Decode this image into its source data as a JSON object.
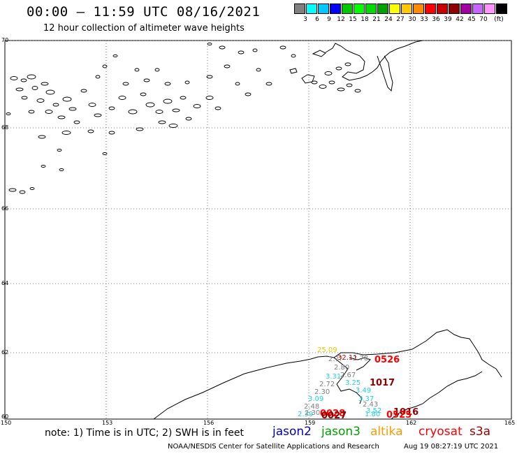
{
  "header": {
    "title": "00:00 – 11:59 UTC 08/16/2021",
    "subtitle": "12 hour collection of altimeter wave heights"
  },
  "legend": {
    "unit": "(ft)",
    "colors": [
      "#808080",
      "#00ffff",
      "#00c8ff",
      "#0000ff",
      "#00c800",
      "#00ff00",
      "#00dc00",
      "#00a000",
      "#ffff00",
      "#ffc800",
      "#ff8c00",
      "#ff0000",
      "#c80000",
      "#900000",
      "#a000a0",
      "#c864ff",
      "#ff96ff",
      "#000000"
    ],
    "ticks": [
      "3",
      "6",
      "9",
      "12",
      "15",
      "18",
      "21",
      "24",
      "27",
      "30",
      "33",
      "36",
      "39",
      "42",
      "45",
      "70"
    ]
  },
  "axes": {
    "lat_labels": [
      "70",
      "68",
      "66",
      "64",
      "62",
      "60"
    ],
    "lon_labels": [
      "150",
      "153",
      "156",
      "159",
      "162",
      "165"
    ]
  },
  "points": [
    {
      "t": "25.09",
      "c": "#e6c800"
    },
    {
      "t": "2.??",
      "c": "#808080"
    },
    {
      "t": "32.11",
      "c": "#c80000"
    },
    {
      "t": "2.78",
      "c": "#808080"
    },
    {
      "t": "2.80",
      "c": "#808080"
    },
    {
      "t": "2.67",
      "c": "#808080"
    },
    {
      "t": "3.31",
      "c": "#20d0e0"
    },
    {
      "t": "2.72",
      "c": "#808080"
    },
    {
      "t": "3.25",
      "c": "#20d0e0"
    },
    {
      "t": "2.30",
      "c": "#808080"
    },
    {
      "t": "3.49",
      "c": "#20d0e0"
    },
    {
      "t": "3.09",
      "c": "#20d0e0"
    },
    {
      "t": "3.37",
      "c": "#20d0e0"
    },
    {
      "t": "2.43",
      "c": "#808080"
    },
    {
      "t": "2.48",
      "c": "#808080"
    },
    {
      "t": "3.52",
      "c": "#20d0e0"
    },
    {
      "t": "2.39",
      "c": "#20d0e0"
    },
    {
      "t": "2.30",
      "c": "#808080"
    },
    {
      "t": "1.80",
      "c": "#20d0e0"
    }
  ],
  "times": [
    {
      "t": "0526",
      "c": "#ff0000"
    },
    {
      "t": "1017",
      "c": "#900000"
    },
    {
      "t": "0028",
      "c": "#ff0000"
    },
    {
      "t": "0027",
      "c": "#900000"
    },
    {
      "t": "1016",
      "c": "#900000"
    },
    {
      "t": "0525",
      "c": "#ff0000"
    }
  ],
  "footer": {
    "note": "note:  1) Time is in UTC;  2) SWH is in feet",
    "sats": [
      {
        "name": "jason2",
        "color": "#0000c8"
      },
      {
        "name": "jason3",
        "color": "#00a000"
      },
      {
        "name": "altika",
        "color": "#ff9900"
      },
      {
        "name": "cryosat",
        "color": "#ff0000"
      },
      {
        "name": "s3a",
        "color": "#a00000"
      }
    ],
    "credit": "NOAA/NESDIS Center for Satellite Applications and Research",
    "stamp": "Aug 19 08:27:19 UTC 2021"
  }
}
